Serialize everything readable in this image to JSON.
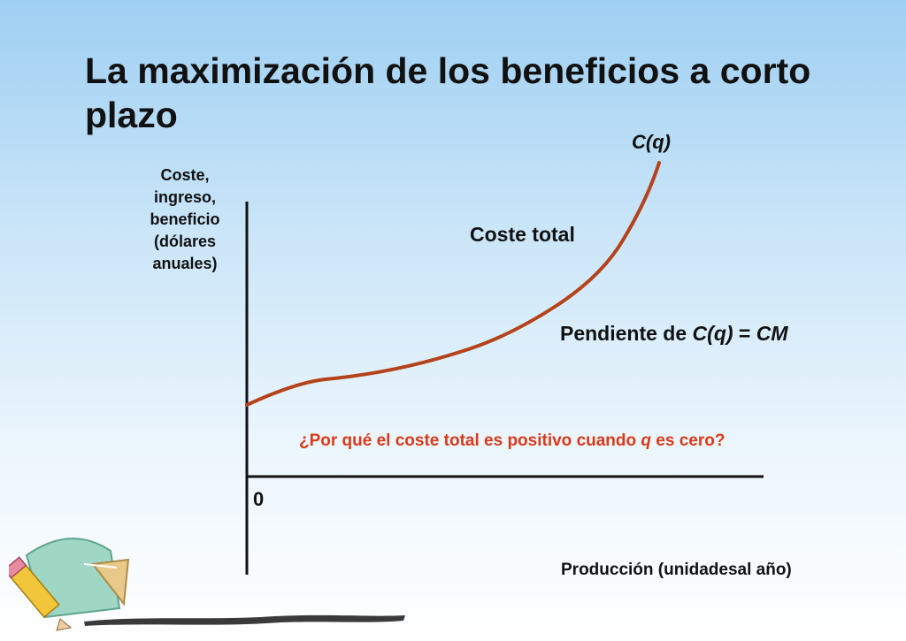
{
  "title": "La maximización de los beneficios a corto plazo",
  "chart_data": {
    "type": "line",
    "ylabel": "Coste, ingreso, beneficio (dólares anuales)",
    "xlabel": "Producción (unidadesal año)",
    "origin_label": "0",
    "series": [
      {
        "name": "C(q)"
      }
    ],
    "curve_label": "Coste total",
    "slope_note": {
      "prefix": "Pendiente de ",
      "term": "C(q)",
      "mid": " = ",
      "result": "CM"
    },
    "question": {
      "prefix": "¿Por qué el coste total es positivo cuando ",
      "var": "q",
      "suffix": " es cero?"
    }
  },
  "colors": {
    "curve": "#b5421a",
    "question_text": "#d93a1a",
    "axis": "#111111"
  }
}
